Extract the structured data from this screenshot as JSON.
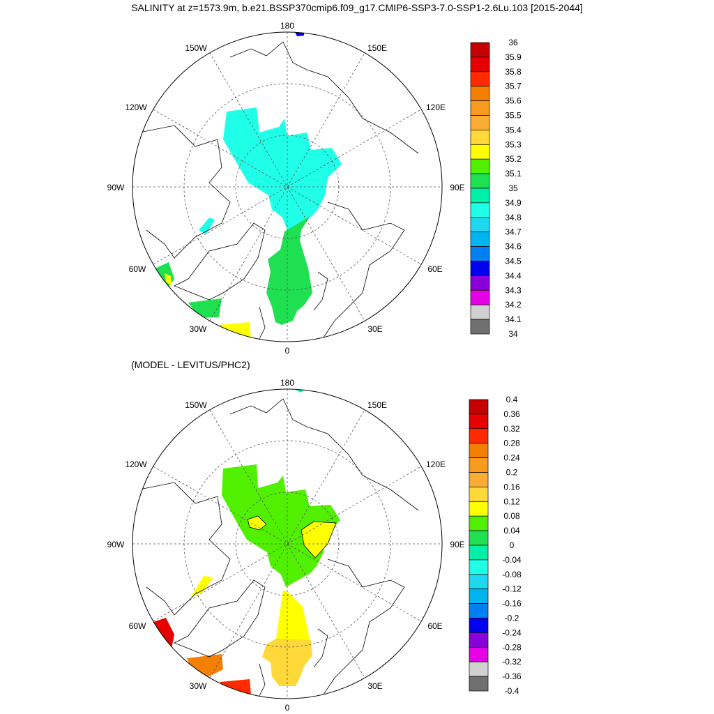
{
  "title": "SALINITY at z=1573.9m, b.e21.BSSP370cmip6.f09_g17.CMIP6-SSP3-7.0-SSP1-2.6Lu.103 [2015-2044]",
  "subtitle": "(MODEL - LEVITUS/PHC2)",
  "lon_labels": {
    "n180": "180",
    "w150": "150W",
    "e150": "150E",
    "w120": "120W",
    "e120": "120E",
    "w90": "90W",
    "e90": "90E",
    "w60": "60W",
    "e60": "60E",
    "w30": "30W",
    "e30": "30E",
    "s0": "0"
  },
  "top_colorbar": {
    "labels": [
      "36",
      "35.9",
      "35.8",
      "35.7",
      "35.6",
      "35.5",
      "35.4",
      "35.3",
      "35.2",
      "35.1",
      "35",
      "34.9",
      "34.8",
      "34.7",
      "34.6",
      "34.5",
      "34.4",
      "34.3",
      "34.2",
      "34.1",
      "34"
    ],
    "colors": [
      "#c40000",
      "#e60000",
      "#ff2a00",
      "#f57f00",
      "#f79a1e",
      "#fbac34",
      "#ffd83a",
      "#ffff00",
      "#50f000",
      "#1ee050",
      "#00f0a8",
      "#20ffe8",
      "#1ed8f0",
      "#00b4f0",
      "#0080f0",
      "#0000f0",
      "#8a00d8",
      "#e600e6",
      "#d0d0d0",
      "#707070"
    ]
  },
  "bottom_colorbar": {
    "labels": [
      "0.4",
      "0.36",
      "0.32",
      "0.28",
      "0.24",
      "0.2",
      "0.16",
      "0.12",
      "0.08",
      "0.04",
      "0",
      "-0.04",
      "-0.08",
      "-0.12",
      "-0.16",
      "-0.2",
      "-0.24",
      "-0.28",
      "-0.32",
      "-0.36",
      "-0.4"
    ],
    "colors": [
      "#c40000",
      "#e60000",
      "#ff2a00",
      "#f57f00",
      "#f79a1e",
      "#fbac34",
      "#ffd83a",
      "#ffff00",
      "#50f000",
      "#1ee050",
      "#00f0a8",
      "#20ffe8",
      "#1ed8f0",
      "#00b4f0",
      "#0080f0",
      "#0000f0",
      "#8a00d8",
      "#e600e6",
      "#d0d0d0",
      "#707070"
    ]
  }
}
